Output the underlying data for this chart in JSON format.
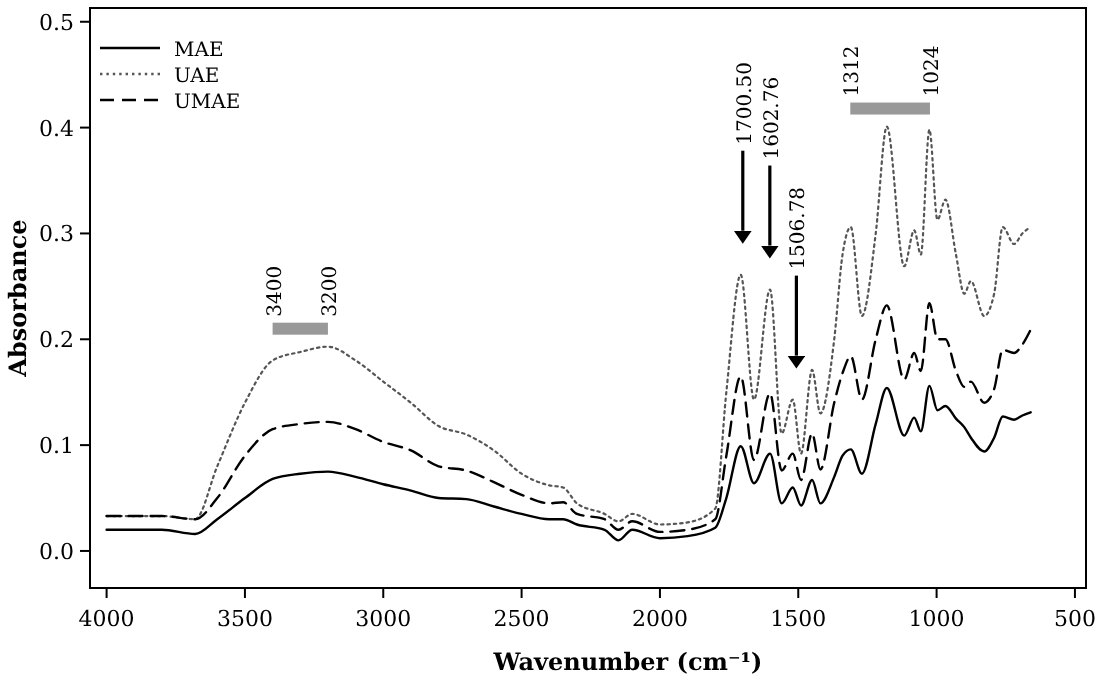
{
  "chart_data": {
    "type": "line",
    "xlabel": "Wavenumber (cm⁻¹)",
    "ylabel": "Absorbance",
    "x": [
      4000,
      3800,
      3680,
      3600,
      3500,
      3400,
      3300,
      3200,
      3100,
      3000,
      2900,
      2800,
      2700,
      2600,
      2500,
      2400,
      2350,
      2300,
      2200,
      2150,
      2100,
      2000,
      1900,
      1800,
      1760,
      1708,
      1660,
      1602,
      1560,
      1520,
      1490,
      1450,
      1420,
      1370,
      1340,
      1310,
      1270,
      1220,
      1180,
      1117,
      1081,
      1057,
      1026,
      997,
      968,
      930,
      900,
      876,
      828,
      792,
      761,
      720,
      690,
      660
    ],
    "series": [
      {
        "name": "MAE",
        "color": "#000000",
        "line_style": "solid",
        "values": [
          0.02,
          0.02,
          0.016,
          0.03,
          0.05,
          0.068,
          0.073,
          0.075,
          0.07,
          0.063,
          0.057,
          0.05,
          0.049,
          0.042,
          0.035,
          0.03,
          0.03,
          0.025,
          0.02,
          0.01,
          0.02,
          0.012,
          0.014,
          0.022,
          0.05,
          0.099,
          0.064,
          0.092,
          0.045,
          0.06,
          0.043,
          0.067,
          0.045,
          0.07,
          0.09,
          0.096,
          0.073,
          0.12,
          0.154,
          0.109,
          0.126,
          0.113,
          0.156,
          0.133,
          0.137,
          0.125,
          0.117,
          0.107,
          0.094,
          0.107,
          0.127,
          0.124,
          0.128,
          0.131
        ]
      },
      {
        "name": "UAE",
        "color": "#555555",
        "line_style": "dotted",
        "values": [
          0.033,
          0.033,
          0.03,
          0.08,
          0.14,
          0.18,
          0.188,
          0.193,
          0.18,
          0.16,
          0.14,
          0.118,
          0.11,
          0.095,
          0.073,
          0.062,
          0.06,
          0.045,
          0.035,
          0.028,
          0.035,
          0.025,
          0.027,
          0.04,
          0.15,
          0.261,
          0.143,
          0.247,
          0.111,
          0.143,
          0.092,
          0.171,
          0.13,
          0.2,
          0.28,
          0.306,
          0.222,
          0.3,
          0.401,
          0.269,
          0.303,
          0.28,
          0.398,
          0.313,
          0.332,
          0.28,
          0.243,
          0.255,
          0.222,
          0.243,
          0.306,
          0.29,
          0.3,
          0.306
        ]
      },
      {
        "name": "UMAE",
        "color": "#000000",
        "line_style": "dashed",
        "values": [
          0.033,
          0.033,
          0.03,
          0.05,
          0.09,
          0.115,
          0.12,
          0.122,
          0.115,
          0.103,
          0.095,
          0.08,
          0.076,
          0.065,
          0.053,
          0.045,
          0.046,
          0.035,
          0.03,
          0.02,
          0.028,
          0.018,
          0.02,
          0.03,
          0.09,
          0.165,
          0.086,
          0.149,
          0.076,
          0.092,
          0.067,
          0.111,
          0.077,
          0.14,
          0.168,
          0.184,
          0.143,
          0.2,
          0.232,
          0.162,
          0.187,
          0.17,
          0.234,
          0.2,
          0.2,
          0.17,
          0.155,
          0.16,
          0.14,
          0.153,
          0.19,
          0.187,
          0.195,
          0.209
        ]
      }
    ],
    "xlim": [
      4060,
      460
    ],
    "xticks": [
      4000,
      3500,
      3000,
      2500,
      2000,
      1500,
      1000,
      500
    ],
    "ylim": [
      -0.035,
      0.513
    ],
    "yticks": [
      {
        "value": 0,
        "label": "0.0"
      },
      {
        "value": 0.1,
        "label": "0.1"
      },
      {
        "value": 0.2,
        "label": "0.2"
      },
      {
        "value": 0.3,
        "label": "0.3"
      },
      {
        "value": 0.4,
        "label": "0.4"
      },
      {
        "value": 0.5,
        "label": "0.5"
      }
    ],
    "annotations": [
      "3400",
      "3200",
      "1700.50",
      "1602.76",
      "1506.78",
      "1312",
      "1024"
    ],
    "legend": "top left",
    "grid": false,
    "marker": "none"
  }
}
